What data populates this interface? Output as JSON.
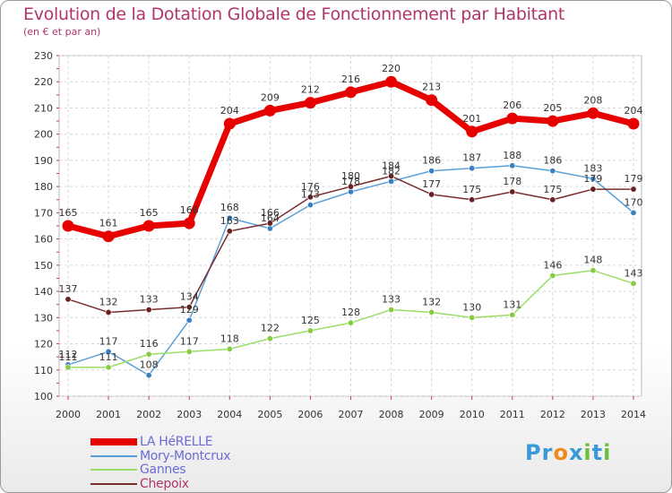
{
  "chart_data": {
    "type": "line",
    "title": "Evolution de la Dotation Globale de Fonctionnement par Habitant",
    "subtitle": "(en € et par an)",
    "categories": [
      "2000",
      "2001",
      "2002",
      "2003",
      "2004",
      "2005",
      "2006",
      "2007",
      "2008",
      "2009",
      "2010",
      "2011",
      "2012",
      "2013",
      "2014"
    ],
    "ylim": [
      100,
      230
    ],
    "yticks": [
      100,
      110,
      120,
      130,
      140,
      150,
      160,
      170,
      180,
      190,
      200,
      210,
      220,
      230
    ],
    "grid": true,
    "legend_position": "bottom-left",
    "series": [
      {
        "name": "LA HéRELLE",
        "color": "#e60000",
        "emphasis": true,
        "values": [
          165,
          161,
          165,
          166,
          204,
          209,
          212,
          216,
          220,
          213,
          201,
          206,
          205,
          208,
          204
        ],
        "labels": [
          "165",
          "161",
          "165",
          "166",
          "204",
          "209",
          "212",
          "216",
          "220",
          "213",
          "201",
          "206",
          "205",
          "208",
          "204"
        ]
      },
      {
        "name": "Mory-Montcrux",
        "color": "#5aa0d8",
        "marker": "#3a80c0",
        "values": [
          112,
          117,
          108,
          129,
          168,
          164,
          173,
          178,
          182,
          186,
          187,
          188,
          186,
          183,
          170
        ],
        "labels": [
          "112",
          "117",
          "108",
          "129",
          "168",
          "164",
          "173",
          "178",
          "182",
          "186",
          "187",
          "188",
          "186",
          "183",
          "170"
        ]
      },
      {
        "name": "Gannes",
        "color": "#99dd66",
        "marker": "#88cc44",
        "values": [
          111,
          111,
          116,
          117,
          118,
          122,
          125,
          128,
          133,
          132,
          130,
          131,
          146,
          148,
          143
        ],
        "labels": [
          "111",
          "111",
          "116",
          "117",
          "118",
          "122",
          "125",
          "128",
          "133",
          "132",
          "130",
          "131",
          "146",
          "148",
          "143"
        ]
      },
      {
        "name": "Chepoix",
        "color": "#7a2e2e",
        "marker": "#6a2020",
        "values": [
          137,
          132,
          133,
          134,
          163,
          166,
          176,
          180,
          184,
          177,
          175,
          178,
          175,
          179,
          179
        ],
        "labels": [
          "137",
          "132",
          "133",
          "134",
          "163",
          "166",
          "176",
          "180",
          "184",
          "177",
          "175",
          "178",
          "175",
          "179",
          "179"
        ]
      }
    ]
  },
  "logo": {
    "parts": [
      "Pr",
      "o",
      "x",
      "i",
      "t",
      "i"
    ],
    "colors": [
      "#3a9ad9",
      "#f08a1c",
      "#3a9ad9",
      "#6bbf3a",
      "#3a9ad9",
      "#6bbf3a"
    ]
  }
}
